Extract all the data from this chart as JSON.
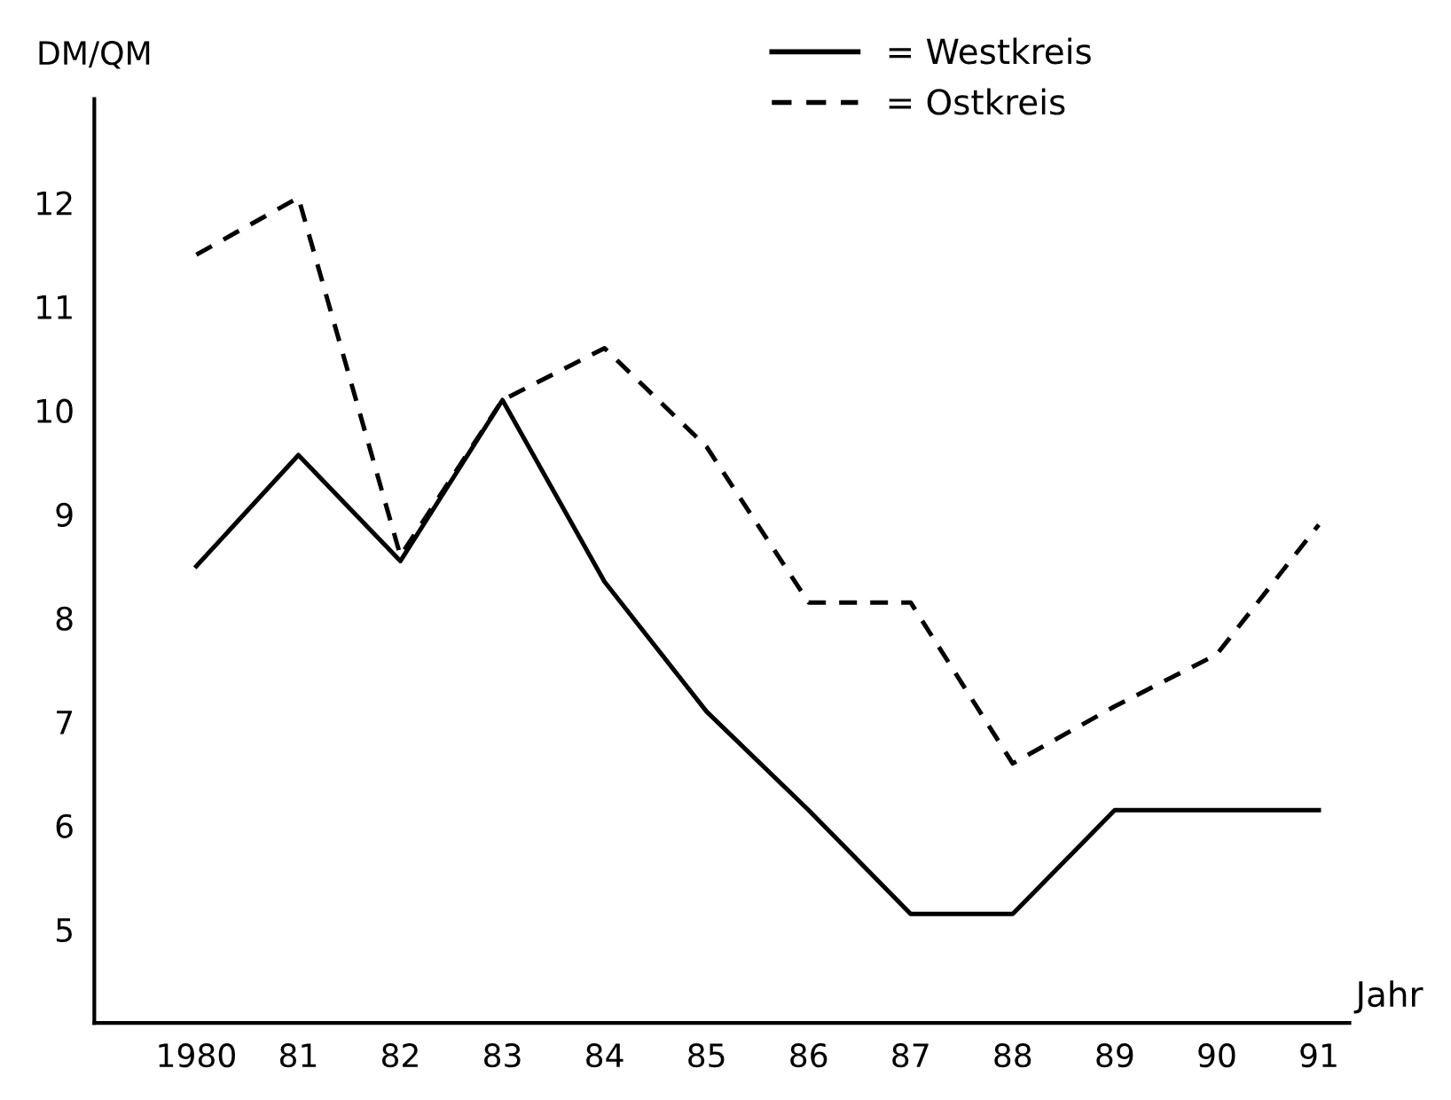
{
  "chart_data": {
    "type": "line",
    "ylabel": "DM/QM",
    "xlabel": "Jahr",
    "x": [
      1980,
      1981,
      1982,
      1983,
      1984,
      1985,
      1986,
      1987,
      1988,
      1989,
      1990,
      1991
    ],
    "series": [
      {
        "name": "= Westkreis",
        "color": "#000000",
        "line_style": "solid",
        "values": [
          8.5,
          9.57,
          8.55,
          10.1,
          8.35,
          7.1,
          6.15,
          5.15,
          5.15,
          6.15,
          6.15,
          6.15
        ]
      },
      {
        "name": "= Ostkreis",
        "color": "#000000",
        "line_style": "dashed",
        "values": [
          11.5,
          12.05,
          8.6,
          10.1,
          10.6,
          9.65,
          8.15,
          8.15,
          6.6,
          7.15,
          7.65,
          8.9
        ]
      }
    ],
    "xlim": [
      1979,
      1991.3
    ],
    "ylim": [
      4.1,
      13
    ],
    "xticks": [
      {
        "value": 1980,
        "label": "1980"
      },
      {
        "value": 1981,
        "label": "81"
      },
      {
        "value": 1982,
        "label": "82"
      },
      {
        "value": 1983,
        "label": "83"
      },
      {
        "value": 1984,
        "label": "84"
      },
      {
        "value": 1985,
        "label": "85"
      },
      {
        "value": 1986,
        "label": "86"
      },
      {
        "value": 1987,
        "label": "87"
      },
      {
        "value": 1988,
        "label": "88"
      },
      {
        "value": 1989,
        "label": "89"
      },
      {
        "value": 1990,
        "label": "90"
      },
      {
        "value": 1991,
        "label": "91"
      }
    ],
    "yticks": [
      5,
      6,
      7,
      8,
      9,
      10,
      11,
      12
    ],
    "grid": false,
    "legend": "top right",
    "marker": "none"
  }
}
